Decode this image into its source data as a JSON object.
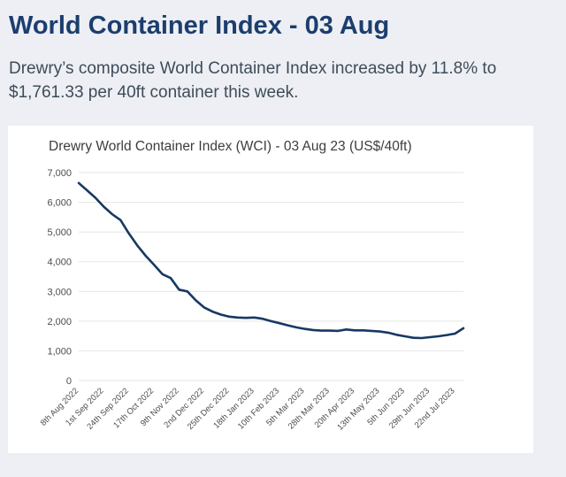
{
  "header": {
    "title": "World Container Index - 03 Aug",
    "summary": "Drewry’s composite World Container Index increased by 11.8% to $1,761.33 per 40ft container this week."
  },
  "chart": {
    "title": "Drewry World Container Index (WCI) - 03 Aug 23 (US$/40ft)"
  },
  "chart_data": {
    "type": "line",
    "title": "Drewry World Container Index (WCI) - 03 Aug 23 (US$/40ft)",
    "series": [
      {
        "name": "WCI (US$/40ft)",
        "values": [
          6650,
          6400,
          6150,
          5850,
          5600,
          5400,
          4950,
          4550,
          4200,
          3900,
          3580,
          3450,
          3060,
          3000,
          2700,
          2460,
          2320,
          2220,
          2150,
          2120,
          2110,
          2120,
          2080,
          2000,
          1930,
          1860,
          1790,
          1740,
          1700,
          1680,
          1680,
          1670,
          1720,
          1690,
          1690,
          1670,
          1650,
          1610,
          1540,
          1490,
          1440,
          1430,
          1460,
          1490,
          1530,
          1580,
          1761.33
        ]
      }
    ],
    "x_tick_labels": [
      "8th Aug 2022",
      "1st Sep 2022",
      "24th Sep 2022",
      "17th Oct 2022",
      "9th Nov 2022",
      "2nd Dec 2022",
      "25th Dec 2022",
      "18th Jan 2023",
      "10th Feb 2023",
      "5th Mar 2023",
      "28th Mar 2023",
      "20th Apr 2023",
      "13th May 2023",
      "5th Jun 2023",
      "29th Jun 2023",
      "22nd Jul 2023"
    ],
    "x_tick_every": 3,
    "y_ticks": [
      0,
      1000,
      2000,
      3000,
      4000,
      5000,
      6000,
      7000
    ],
    "y_tick_labels": [
      "0",
      "1,000",
      "2,000",
      "3,000",
      "4,000",
      "5,000",
      "6,000",
      "7,000"
    ],
    "ylim": [
      0,
      7000
    ],
    "grid": "horizontal",
    "legend": "none",
    "xlabel": "",
    "ylabel": "",
    "colors": {
      "line": "#183863",
      "gridline": "#e5e5e5",
      "axis_text": "#4d4d4d"
    }
  }
}
